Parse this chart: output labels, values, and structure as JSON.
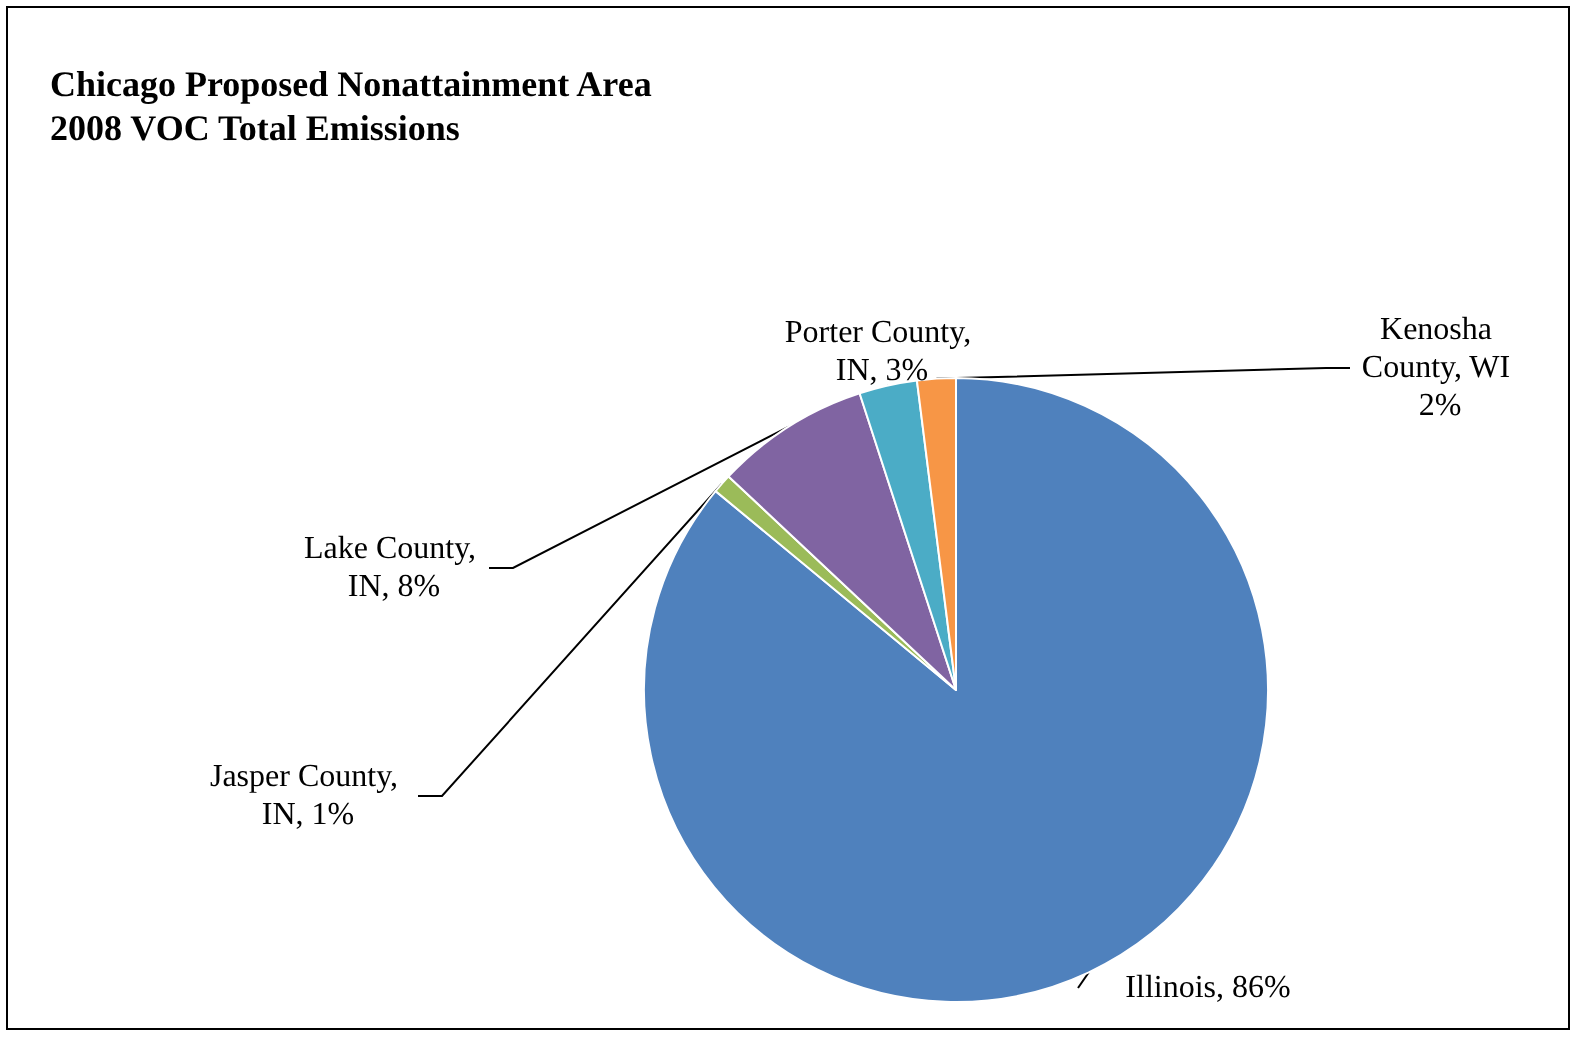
{
  "chart_data": {
    "type": "pie",
    "title": "Chicago Proposed Nonattainment Area\n2008 VOC Total Emissions",
    "categories": [
      "Illinois",
      "Jasper County, IN",
      "Lake County, IN",
      "Porter County, IN",
      "Kenosha County, WI"
    ],
    "values": [
      86,
      1,
      8,
      3,
      2
    ],
    "colors": [
      "#4f81bd",
      "#9bbb59",
      "#8064a2",
      "#4bacc6",
      "#f79646"
    ],
    "value_labels": [
      ", 86%",
      ", 1%",
      ", 8%",
      ", 3%",
      " 2%"
    ],
    "legend": false
  }
}
